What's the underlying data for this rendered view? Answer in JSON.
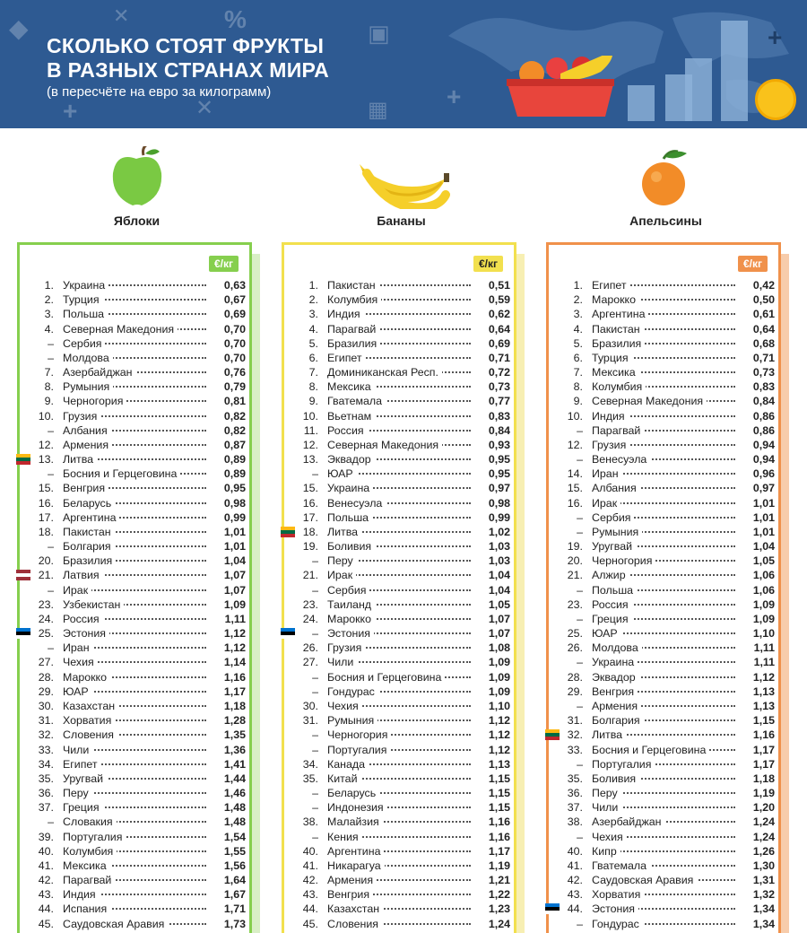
{
  "header": {
    "title_line1": "СКОЛЬКО СТОЯТ ФРУКТЫ",
    "title_line2": "В РАЗНЫХ СТРАНАХ МИРА",
    "subtitle": "(в пересчёте на евро за килограмм)"
  },
  "colors": {
    "header_bg": "#2e5a92",
    "apples": "#86cf4e",
    "bananas": "#f2e04e",
    "oranges": "#f0914b"
  },
  "columns": [
    {
      "name": "Яблоки",
      "unit": "€/кг",
      "icon": "apple-icon",
      "rows": [
        {
          "rank": "1.",
          "country": "Украина",
          "price": "0,63"
        },
        {
          "rank": "2.",
          "country": "Турция",
          "price": "0,67"
        },
        {
          "rank": "3.",
          "country": "Польша",
          "price": "0,69"
        },
        {
          "rank": "4.",
          "country": "Северная Македония",
          "price": "0,70"
        },
        {
          "rank": "–",
          "country": "Сербия",
          "price": "0,70"
        },
        {
          "rank": "–",
          "country": "Молдова",
          "price": "0,70"
        },
        {
          "rank": "7.",
          "country": "Азербайджан",
          "price": "0,76"
        },
        {
          "rank": "8.",
          "country": "Румыния",
          "price": "0,79"
        },
        {
          "rank": "9.",
          "country": "Черногория",
          "price": "0,81"
        },
        {
          "rank": "10.",
          "country": "Грузия",
          "price": "0,82"
        },
        {
          "rank": "–",
          "country": "Албания",
          "price": "0,82"
        },
        {
          "rank": "12.",
          "country": "Армения",
          "price": "0,87"
        },
        {
          "rank": "13.",
          "country": "Литва",
          "price": "0,89",
          "flag": "lt"
        },
        {
          "rank": "–",
          "country": "Босния и Герцеговина",
          "price": "0,89"
        },
        {
          "rank": "15.",
          "country": "Венгрия",
          "price": "0,95"
        },
        {
          "rank": "16.",
          "country": "Беларусь",
          "price": "0,98"
        },
        {
          "rank": "17.",
          "country": "Аргентина",
          "price": "0,99"
        },
        {
          "rank": "18.",
          "country": "Пакистан",
          "price": "1,01"
        },
        {
          "rank": "–",
          "country": "Болгария",
          "price": "1,01"
        },
        {
          "rank": "20.",
          "country": "Бразилия",
          "price": "1,04"
        },
        {
          "rank": "21.",
          "country": "Латвия",
          "price": "1,07",
          "flag": "lv"
        },
        {
          "rank": "–",
          "country": "Ирак",
          "price": "1,07"
        },
        {
          "rank": "23.",
          "country": "Узбекистан",
          "price": "1,09"
        },
        {
          "rank": "24.",
          "country": "Россия",
          "price": "1,11"
        },
        {
          "rank": "25.",
          "country": "Эстония",
          "price": "1,12",
          "flag": "ee"
        },
        {
          "rank": "–",
          "country": "Иран",
          "price": "1,12"
        },
        {
          "rank": "27.",
          "country": "Чехия",
          "price": "1,14"
        },
        {
          "rank": "28.",
          "country": "Марокко",
          "price": "1,16"
        },
        {
          "rank": "29.",
          "country": "ЮАР",
          "price": "1,17"
        },
        {
          "rank": "30.",
          "country": "Казахстан",
          "price": "1,18"
        },
        {
          "rank": "31.",
          "country": "Хорватия",
          "price": "1,28"
        },
        {
          "rank": "32.",
          "country": "Словения",
          "price": "1,35"
        },
        {
          "rank": "33.",
          "country": "Чили",
          "price": "1,36"
        },
        {
          "rank": "34.",
          "country": "Египет",
          "price": "1,41"
        },
        {
          "rank": "35.",
          "country": "Уругвай",
          "price": "1,44"
        },
        {
          "rank": "36.",
          "country": "Перу",
          "price": "1,46"
        },
        {
          "rank": "37.",
          "country": "Греция",
          "price": "1,48"
        },
        {
          "rank": "–",
          "country": "Словакия",
          "price": "1,48"
        },
        {
          "rank": "39.",
          "country": "Португалия",
          "price": "1,54"
        },
        {
          "rank": "40.",
          "country": "Колумбия",
          "price": "1,55"
        },
        {
          "rank": "41.",
          "country": "Мексика",
          "price": "1,56"
        },
        {
          "rank": "42.",
          "country": "Парагвай",
          "price": "1,64"
        },
        {
          "rank": "43.",
          "country": "Индия",
          "price": "1,67"
        },
        {
          "rank": "44.",
          "country": "Испания",
          "price": "1,71"
        },
        {
          "rank": "45.",
          "country": "Саудовская Аравия",
          "price": "1,73"
        }
      ]
    },
    {
      "name": "Бананы",
      "unit": "€/кг",
      "icon": "banana-icon",
      "rows": [
        {
          "rank": "1.",
          "country": "Пакистан",
          "price": "0,51"
        },
        {
          "rank": "2.",
          "country": "Колумбия",
          "price": "0,59"
        },
        {
          "rank": "3.",
          "country": "Индия",
          "price": "0,62"
        },
        {
          "rank": "4.",
          "country": "Парагвай",
          "price": "0,64"
        },
        {
          "rank": "5.",
          "country": "Бразилия",
          "price": "0,69"
        },
        {
          "rank": "6.",
          "country": "Египет",
          "price": "0,71"
        },
        {
          "rank": "7.",
          "country": "Доминиканская Респ.",
          "price": "0,72"
        },
        {
          "rank": "8.",
          "country": "Мексика",
          "price": "0,73"
        },
        {
          "rank": "9.",
          "country": "Гватемала",
          "price": "0,77"
        },
        {
          "rank": "10.",
          "country": "Вьетнам",
          "price": "0,83"
        },
        {
          "rank": "11.",
          "country": "Россия",
          "price": "0,84"
        },
        {
          "rank": "12.",
          "country": "Северная Македония",
          "price": "0,93"
        },
        {
          "rank": "13.",
          "country": "Эквадор",
          "price": "0,95"
        },
        {
          "rank": "–",
          "country": "ЮАР",
          "price": "0,95"
        },
        {
          "rank": "15.",
          "country": "Украина",
          "price": "0,97"
        },
        {
          "rank": "16.",
          "country": "Венесуэла",
          "price": "0,98"
        },
        {
          "rank": "17.",
          "country": "Польша",
          "price": "0,99"
        },
        {
          "rank": "18.",
          "country": "Литва",
          "price": "1,02",
          "flag": "lt"
        },
        {
          "rank": "19.",
          "country": "Боливия",
          "price": "1,03"
        },
        {
          "rank": "–",
          "country": "Перу",
          "price": "1,03"
        },
        {
          "rank": "21.",
          "country": "Ирак",
          "price": "1,04"
        },
        {
          "rank": "–",
          "country": "Сербия",
          "price": "1,04"
        },
        {
          "rank": "23.",
          "country": "Таиланд",
          "price": "1,05"
        },
        {
          "rank": "24.",
          "country": "Марокко",
          "price": "1,07"
        },
        {
          "rank": "–",
          "country": "Эстония",
          "price": "1,07",
          "flag": "ee"
        },
        {
          "rank": "26.",
          "country": "Грузия",
          "price": "1,08"
        },
        {
          "rank": "27.",
          "country": "Чили",
          "price": "1,09"
        },
        {
          "rank": "–",
          "country": "Босния и Герцеговина",
          "price": "1,09"
        },
        {
          "rank": "–",
          "country": "Гондурас",
          "price": "1,09"
        },
        {
          "rank": "30.",
          "country": "Чехия",
          "price": "1,10"
        },
        {
          "rank": "31.",
          "country": "Румыния",
          "price": "1,12"
        },
        {
          "rank": "–",
          "country": "Черногория",
          "price": "1,12"
        },
        {
          "rank": "–",
          "country": "Португалия",
          "price": "1,12"
        },
        {
          "rank": "34.",
          "country": "Канада",
          "price": "1,13"
        },
        {
          "rank": "35.",
          "country": "Китай",
          "price": "1,15"
        },
        {
          "rank": "–",
          "country": "Беларусь",
          "price": "1,15"
        },
        {
          "rank": "–",
          "country": "Индонезия",
          "price": "1,15"
        },
        {
          "rank": "38.",
          "country": "Малайзия",
          "price": "1,16"
        },
        {
          "rank": "–",
          "country": "Кения",
          "price": "1,16"
        },
        {
          "rank": "40.",
          "country": "Аргентина",
          "price": "1,17"
        },
        {
          "rank": "41.",
          "country": "Никарагуа",
          "price": "1,19"
        },
        {
          "rank": "42.",
          "country": "Армения",
          "price": "1,21"
        },
        {
          "rank": "43.",
          "country": "Венгрия",
          "price": "1,22"
        },
        {
          "rank": "44.",
          "country": "Казахстан",
          "price": "1,23"
        },
        {
          "rank": "45.",
          "country": "Словения",
          "price": "1,24"
        }
      ]
    },
    {
      "name": "Апельсины",
      "unit": "€/кг",
      "icon": "orange-icon",
      "rows": [
        {
          "rank": "1.",
          "country": "Египет",
          "price": "0,42"
        },
        {
          "rank": "2.",
          "country": "Марокко",
          "price": "0,50"
        },
        {
          "rank": "3.",
          "country": "Аргентина",
          "price": "0,61"
        },
        {
          "rank": "4.",
          "country": "Пакистан",
          "price": "0,64"
        },
        {
          "rank": "5.",
          "country": "Бразилия",
          "price": "0,68"
        },
        {
          "rank": "6.",
          "country": "Турция",
          "price": "0,71"
        },
        {
          "rank": "7.",
          "country": "Мексика",
          "price": "0,73"
        },
        {
          "rank": "8.",
          "country": "Колумбия",
          "price": "0,83"
        },
        {
          "rank": "9.",
          "country": "Северная Македония",
          "price": "0,84"
        },
        {
          "rank": "10.",
          "country": "Индия",
          "price": "0,86"
        },
        {
          "rank": "–",
          "country": "Парагвай",
          "price": "0,86"
        },
        {
          "rank": "12.",
          "country": "Грузия",
          "price": "0,94"
        },
        {
          "rank": "–",
          "country": "Венесуэла",
          "price": "0,94"
        },
        {
          "rank": "14.",
          "country": "Иран",
          "price": "0,96"
        },
        {
          "rank": "15.",
          "country": "Албания",
          "price": "0,97"
        },
        {
          "rank": "16.",
          "country": "Ирак",
          "price": "1,01"
        },
        {
          "rank": "–",
          "country": "Сербия",
          "price": "1,01"
        },
        {
          "rank": "–",
          "country": "Румыния",
          "price": "1,01"
        },
        {
          "rank": "19.",
          "country": "Уругвай",
          "price": "1,04"
        },
        {
          "rank": "20.",
          "country": "Черногория",
          "price": "1,05"
        },
        {
          "rank": "21.",
          "country": "Алжир",
          "price": "1,06"
        },
        {
          "rank": "–",
          "country": "Польша",
          "price": "1,06"
        },
        {
          "rank": "23.",
          "country": "Россия",
          "price": "1,09"
        },
        {
          "rank": "–",
          "country": "Греция",
          "price": "1,09"
        },
        {
          "rank": "25.",
          "country": "ЮАР",
          "price": "1,10"
        },
        {
          "rank": "26.",
          "country": "Молдова",
          "price": "1,11"
        },
        {
          "rank": "–",
          "country": "Украина",
          "price": "1,11"
        },
        {
          "rank": "28.",
          "country": "Эквадор",
          "price": "1,12"
        },
        {
          "rank": "29.",
          "country": "Венгрия",
          "price": "1,13"
        },
        {
          "rank": "–",
          "country": "Армения",
          "price": "1,13"
        },
        {
          "rank": "31.",
          "country": "Болгария",
          "price": "1,15"
        },
        {
          "rank": "32.",
          "country": "Литва",
          "price": "1,16",
          "flag": "lt"
        },
        {
          "rank": "33.",
          "country": "Босния и Герцеговина",
          "price": "1,17"
        },
        {
          "rank": "–",
          "country": "Португалия",
          "price": "1,17"
        },
        {
          "rank": "35.",
          "country": "Боливия",
          "price": "1,18"
        },
        {
          "rank": "36.",
          "country": "Перу",
          "price": "1,19"
        },
        {
          "rank": "37.",
          "country": "Чили",
          "price": "1,20"
        },
        {
          "rank": "38.",
          "country": "Азербайджан",
          "price": "1,24"
        },
        {
          "rank": "–",
          "country": "Чехия",
          "price": "1,24"
        },
        {
          "rank": "40.",
          "country": "Кипр",
          "price": "1,26"
        },
        {
          "rank": "41.",
          "country": "Гватемала",
          "price": "1,30"
        },
        {
          "rank": "42.",
          "country": "Саудовская Аравия",
          "price": "1,31"
        },
        {
          "rank": "43.",
          "country": "Хорватия",
          "price": "1,32"
        },
        {
          "rank": "44.",
          "country": "Эстония",
          "price": "1,34",
          "flag": "ee"
        },
        {
          "rank": "–",
          "country": "Гондурас",
          "price": "1,34"
        }
      ]
    }
  ]
}
